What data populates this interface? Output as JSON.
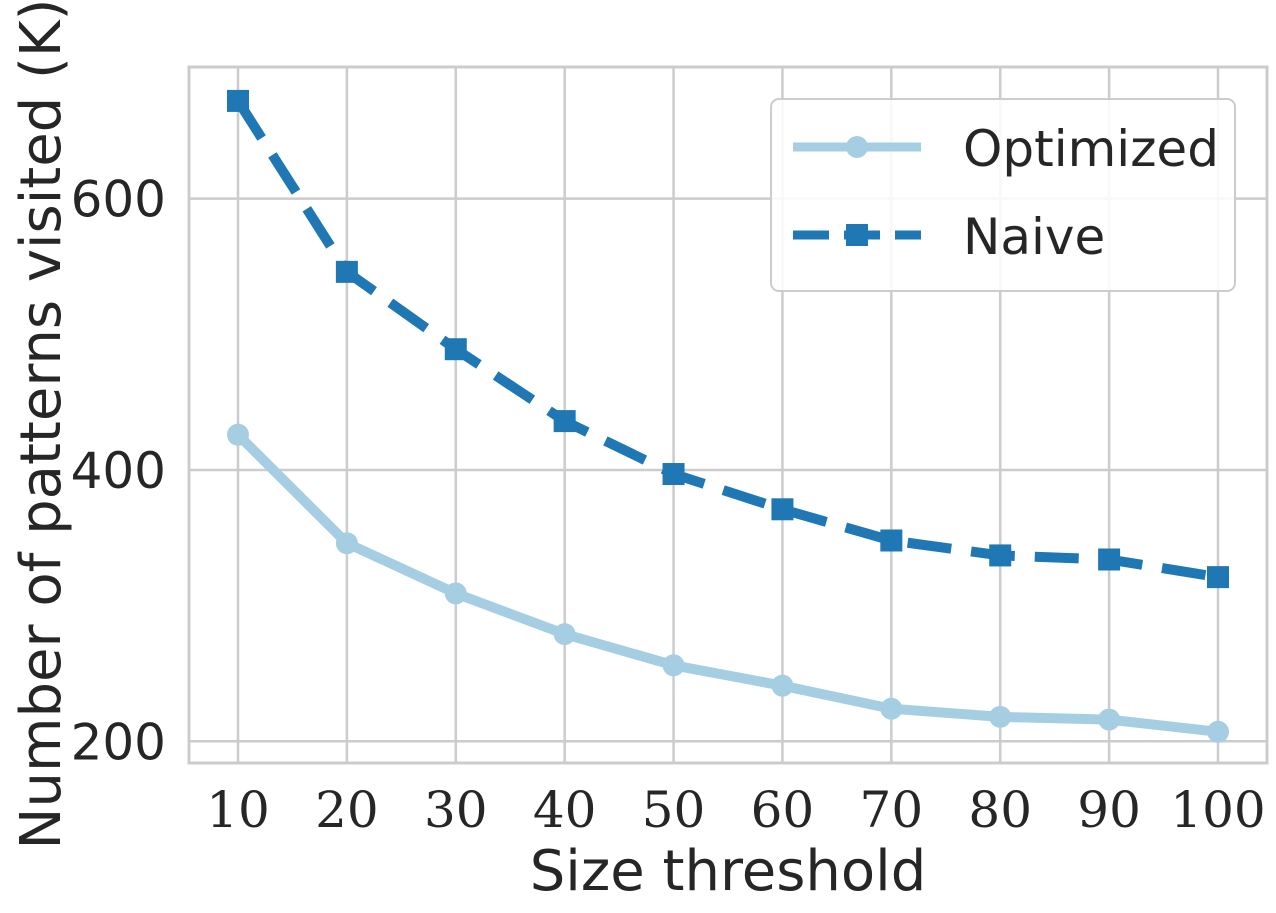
{
  "chart_data": {
    "type": "line",
    "title": "",
    "xlabel": "Size threshold",
    "ylabel": "Number of patterns visited (K)",
    "x": [
      10,
      20,
      30,
      40,
      50,
      60,
      70,
      80,
      90,
      100
    ],
    "x_ticks": [
      "10",
      "20",
      "30",
      "40",
      "50",
      "60",
      "70",
      "80",
      "90",
      "100"
    ],
    "y_ticks": [
      "200",
      "400",
      "600"
    ],
    "xlim": [
      5.5,
      104.5
    ],
    "ylim": [
      184,
      697
    ],
    "grid": true,
    "legend_position": "top-right",
    "series": [
      {
        "name": "Optimized",
        "color": "#a6cee3",
        "line_style": "solid",
        "marker": "circle",
        "values": [
          426,
          346,
          309,
          279,
          256,
          241,
          224,
          218,
          216,
          207
        ]
      },
      {
        "name": "Naive",
        "color": "#1f78b4",
        "line_style": "dashed",
        "marker": "square",
        "values": [
          672,
          546,
          489,
          436,
          397,
          371,
          348,
          337,
          334,
          321
        ]
      }
    ]
  }
}
